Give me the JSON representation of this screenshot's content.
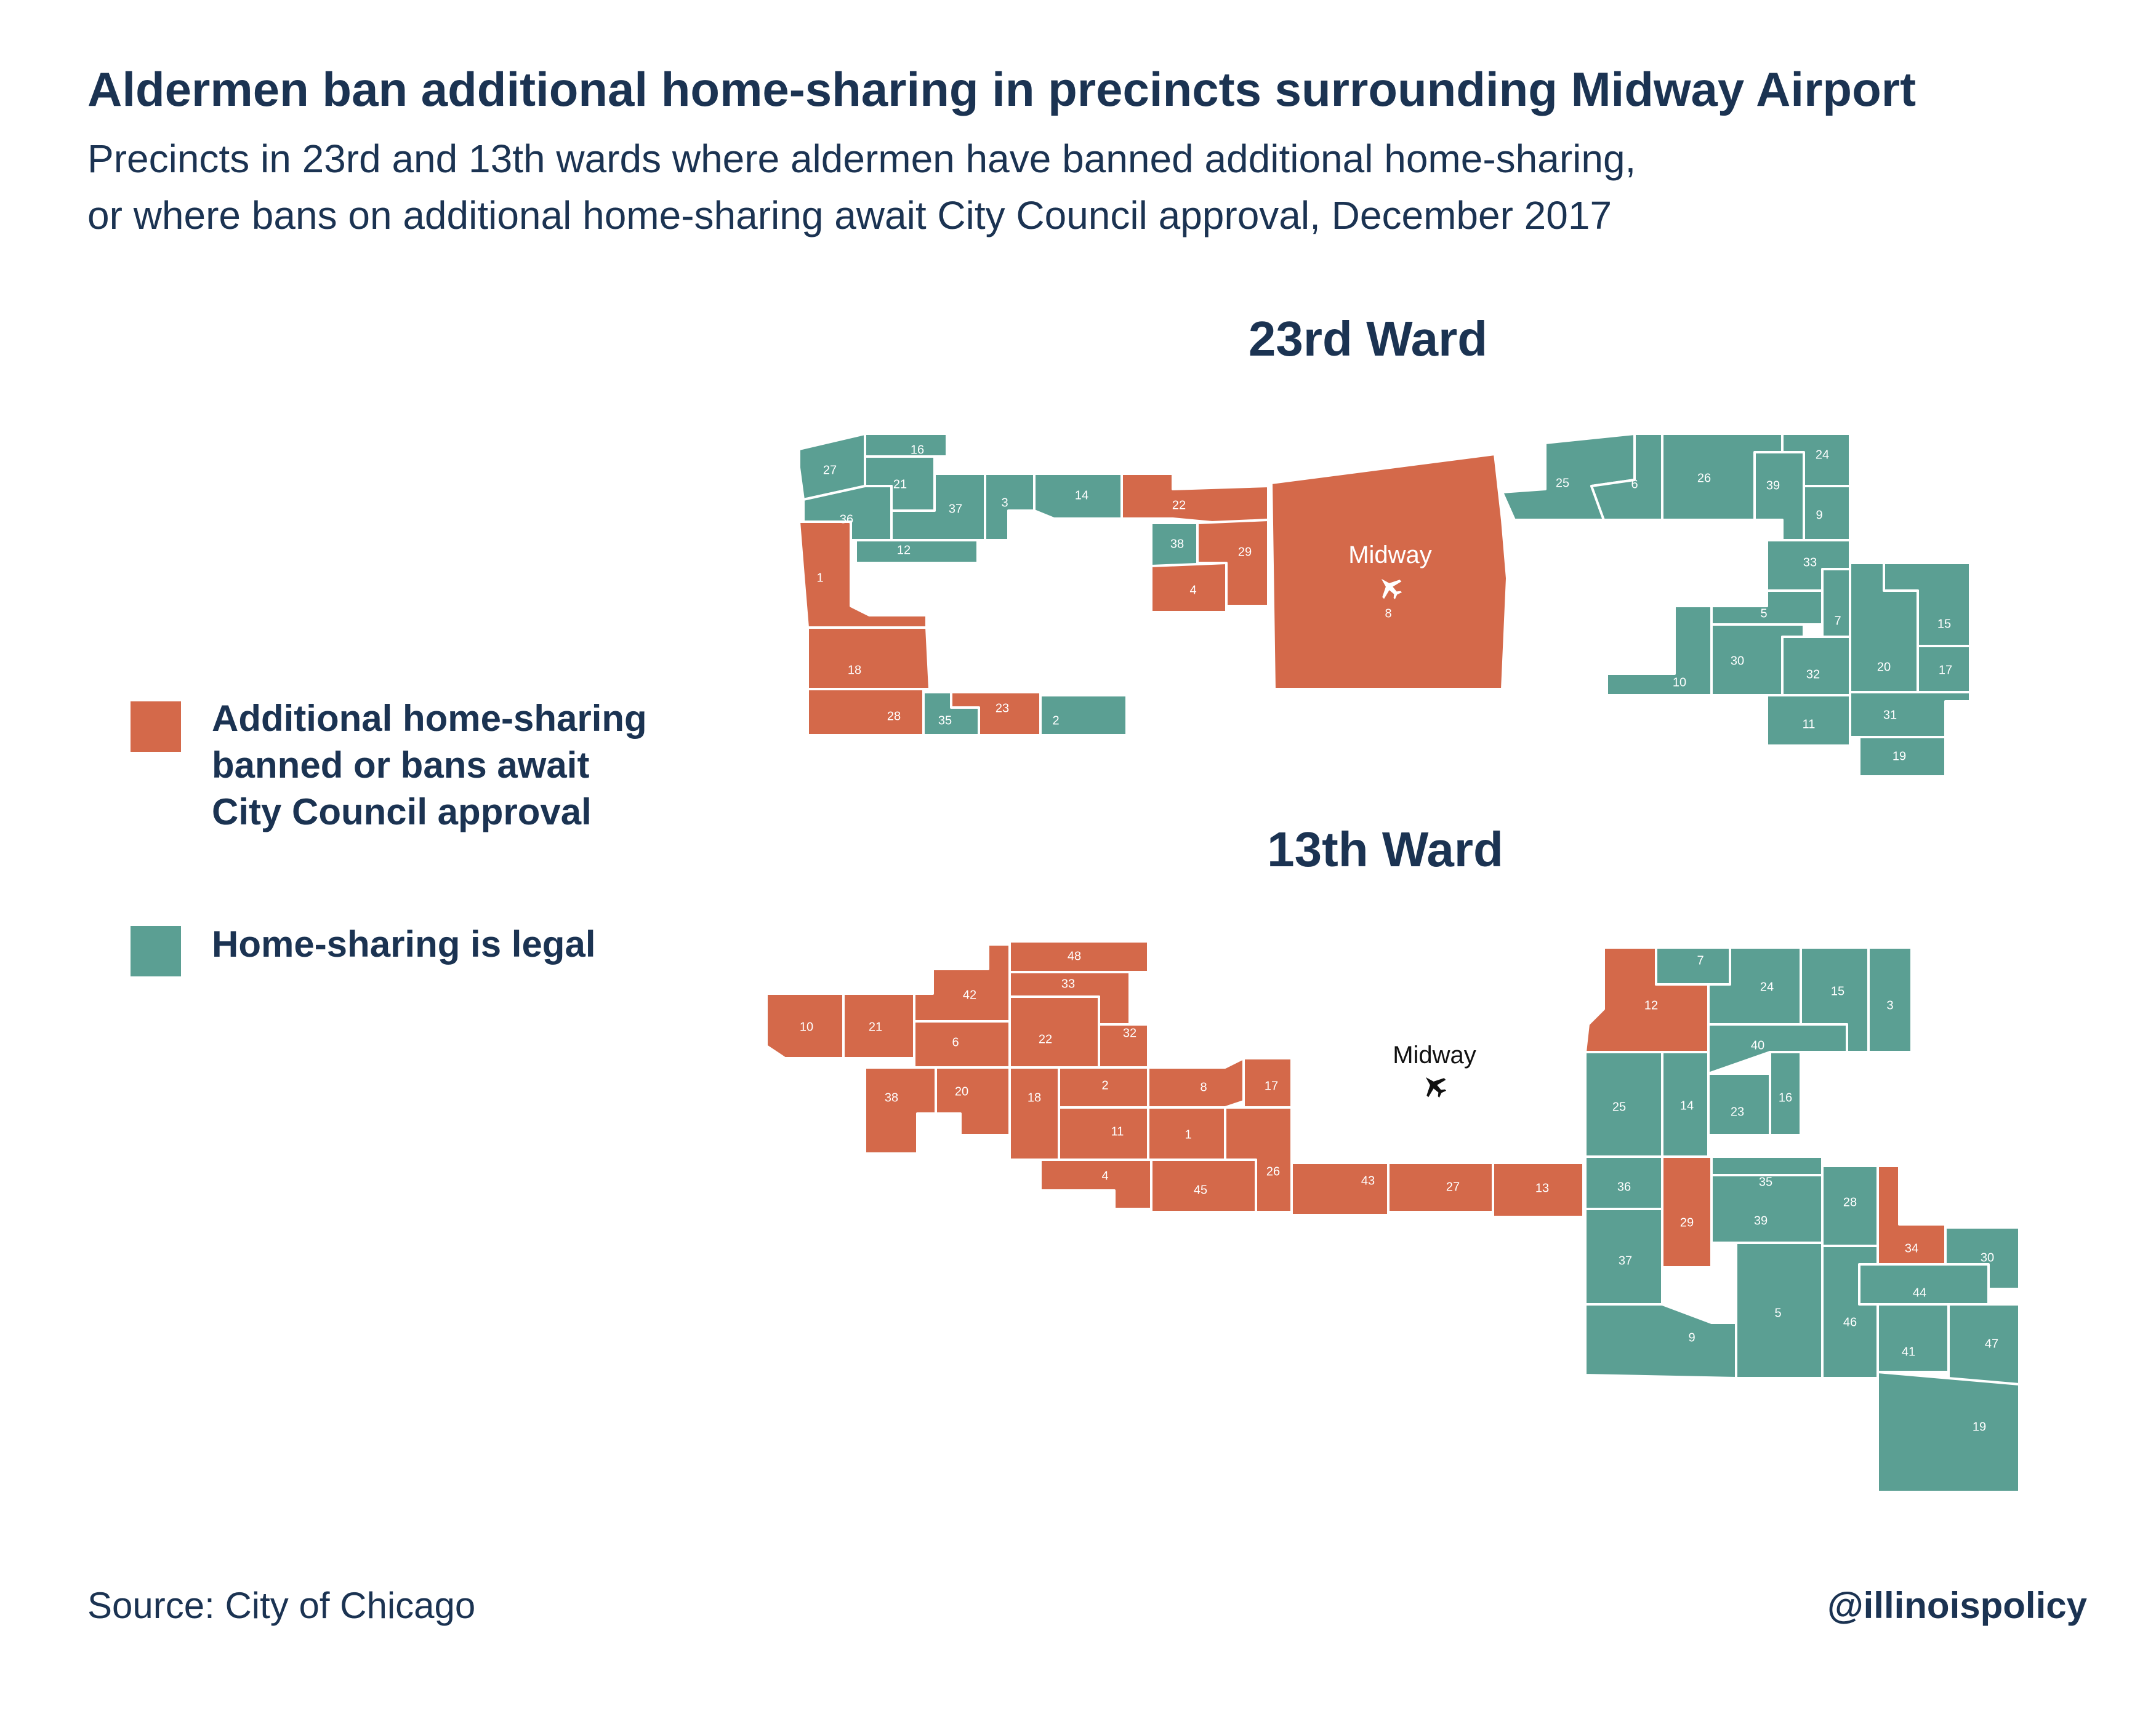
{
  "title": "Aldermen ban additional home-sharing in precincts surrounding Midway Airport",
  "subtitle_lines": [
    "Precincts in 23rd and 13th wards where aldermen have banned additional home-sharing,",
    "or where bans on additional home-sharing await City Council approval, December 2017"
  ],
  "colors": {
    "banned": "#d4694a",
    "legal": "#5b9f93",
    "text": "#1b3352",
    "border": "#ffffff"
  },
  "legend": {
    "banned_lines": [
      "Additional home-sharing",
      "banned or bans await",
      "City Council approval"
    ],
    "legal": "Home-sharing is legal"
  },
  "ward23": {
    "title": "23rd Ward",
    "airport_label": "Midway",
    "airport_icon": "airplane-icon",
    "precincts": [
      {
        "id": "27",
        "status": "legal"
      },
      {
        "id": "16",
        "status": "legal"
      },
      {
        "id": "21",
        "status": "legal"
      },
      {
        "id": "36",
        "status": "legal"
      },
      {
        "id": "37",
        "status": "legal"
      },
      {
        "id": "3",
        "status": "legal"
      },
      {
        "id": "14",
        "status": "legal"
      },
      {
        "id": "12",
        "status": "legal"
      },
      {
        "id": "1",
        "status": "banned"
      },
      {
        "id": "18",
        "status": "banned"
      },
      {
        "id": "28",
        "status": "banned"
      },
      {
        "id": "35",
        "status": "legal"
      },
      {
        "id": "23",
        "status": "banned"
      },
      {
        "id": "2",
        "status": "legal"
      },
      {
        "id": "22",
        "status": "banned"
      },
      {
        "id": "38",
        "status": "legal"
      },
      {
        "id": "4",
        "status": "banned"
      },
      {
        "id": "29",
        "status": "banned"
      },
      {
        "id": "8",
        "status": "banned"
      },
      {
        "id": "25",
        "status": "legal"
      },
      {
        "id": "6",
        "status": "legal"
      },
      {
        "id": "26",
        "status": "legal"
      },
      {
        "id": "39",
        "status": "legal"
      },
      {
        "id": "24",
        "status": "legal"
      },
      {
        "id": "9",
        "status": "legal"
      },
      {
        "id": "33",
        "status": "legal"
      },
      {
        "id": "5",
        "status": "legal"
      },
      {
        "id": "7",
        "status": "legal"
      },
      {
        "id": "10",
        "status": "legal"
      },
      {
        "id": "30",
        "status": "legal"
      },
      {
        "id": "32",
        "status": "legal"
      },
      {
        "id": "11",
        "status": "legal"
      },
      {
        "id": "15",
        "status": "legal"
      },
      {
        "id": "20",
        "status": "legal"
      },
      {
        "id": "17",
        "status": "legal"
      },
      {
        "id": "31",
        "status": "legal"
      },
      {
        "id": "19",
        "status": "legal"
      }
    ]
  },
  "ward13": {
    "title": "13th Ward",
    "airport_label": "Midway",
    "airport_icon": "airplane-icon",
    "precincts": [
      {
        "id": "48",
        "status": "banned"
      },
      {
        "id": "42",
        "status": "banned"
      },
      {
        "id": "33",
        "status": "banned"
      },
      {
        "id": "10",
        "status": "banned"
      },
      {
        "id": "21",
        "status": "banned"
      },
      {
        "id": "6",
        "status": "banned"
      },
      {
        "id": "22",
        "status": "banned"
      },
      {
        "id": "32",
        "status": "banned"
      },
      {
        "id": "38",
        "status": "banned"
      },
      {
        "id": "20",
        "status": "banned"
      },
      {
        "id": "18",
        "status": "banned"
      },
      {
        "id": "2",
        "status": "banned"
      },
      {
        "id": "8",
        "status": "banned"
      },
      {
        "id": "17",
        "status": "banned"
      },
      {
        "id": "11",
        "status": "banned"
      },
      {
        "id": "1",
        "status": "banned"
      },
      {
        "id": "4",
        "status": "banned"
      },
      {
        "id": "45",
        "status": "banned"
      },
      {
        "id": "26",
        "status": "banned"
      },
      {
        "id": "43",
        "status": "banned"
      },
      {
        "id": "27",
        "status": "banned"
      },
      {
        "id": "13",
        "status": "banned"
      },
      {
        "id": "12",
        "status": "banned"
      },
      {
        "id": "7",
        "status": "legal"
      },
      {
        "id": "24",
        "status": "legal"
      },
      {
        "id": "15",
        "status": "legal"
      },
      {
        "id": "3",
        "status": "legal"
      },
      {
        "id": "40",
        "status": "legal"
      },
      {
        "id": "25",
        "status": "legal"
      },
      {
        "id": "14",
        "status": "legal"
      },
      {
        "id": "23",
        "status": "legal"
      },
      {
        "id": "16",
        "status": "legal"
      },
      {
        "id": "36",
        "status": "legal"
      },
      {
        "id": "29",
        "status": "banned"
      },
      {
        "id": "35",
        "status": "legal"
      },
      {
        "id": "39",
        "status": "legal"
      },
      {
        "id": "28",
        "status": "legal"
      },
      {
        "id": "34",
        "status": "banned"
      },
      {
        "id": "30",
        "status": "legal"
      },
      {
        "id": "37",
        "status": "legal"
      },
      {
        "id": "9",
        "status": "legal"
      },
      {
        "id": "5",
        "status": "legal"
      },
      {
        "id": "46",
        "status": "legal"
      },
      {
        "id": "44",
        "status": "legal"
      },
      {
        "id": "41",
        "status": "legal"
      },
      {
        "id": "47",
        "status": "legal"
      },
      {
        "id": "19",
        "status": "legal"
      }
    ]
  },
  "source": "Source:  City of Chicago",
  "handle": "@illinoispolicy"
}
